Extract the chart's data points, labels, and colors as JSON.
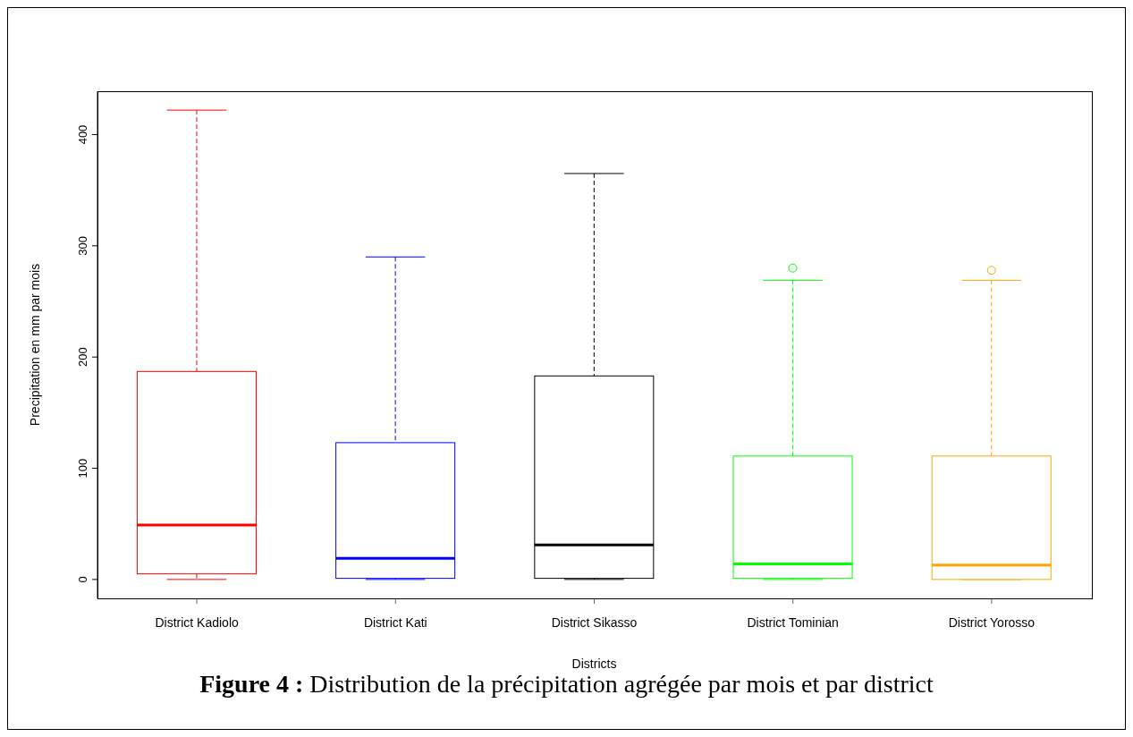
{
  "chart_data": {
    "type": "box",
    "title": "Figure 4 : Distribution de la précipitation agrégée par mois et par district",
    "xlabel": "Districts",
    "ylabel": "Precipitation en mm par mois",
    "categories": [
      "District Kadiolo",
      "District Kati",
      "District Sikasso",
      "District Tominian",
      "District Yorosso"
    ],
    "colors": [
      "#ff0000",
      "#0000ff",
      "#000000",
      "#00ff00",
      "#ffa500"
    ],
    "boxes": [
      {
        "low": 0,
        "q1": 5,
        "median": 49,
        "q3": 187,
        "high": 422
      },
      {
        "low": 0,
        "q1": 1,
        "median": 19,
        "q3": 123,
        "high": 290
      },
      {
        "low": 0,
        "q1": 1,
        "median": 31,
        "q3": 183,
        "high": 365
      },
      {
        "low": 0,
        "q1": 1,
        "median": 14,
        "q3": 111,
        "high": 269,
        "outliers": [
          280
        ]
      },
      {
        "low": 0,
        "q1": 0,
        "median": 13,
        "q3": 111,
        "high": 269,
        "outliers": [
          278
        ]
      }
    ],
    "ylim": [
      -17,
      439
    ],
    "yticks": [
      0,
      100,
      200,
      300,
      400
    ]
  }
}
